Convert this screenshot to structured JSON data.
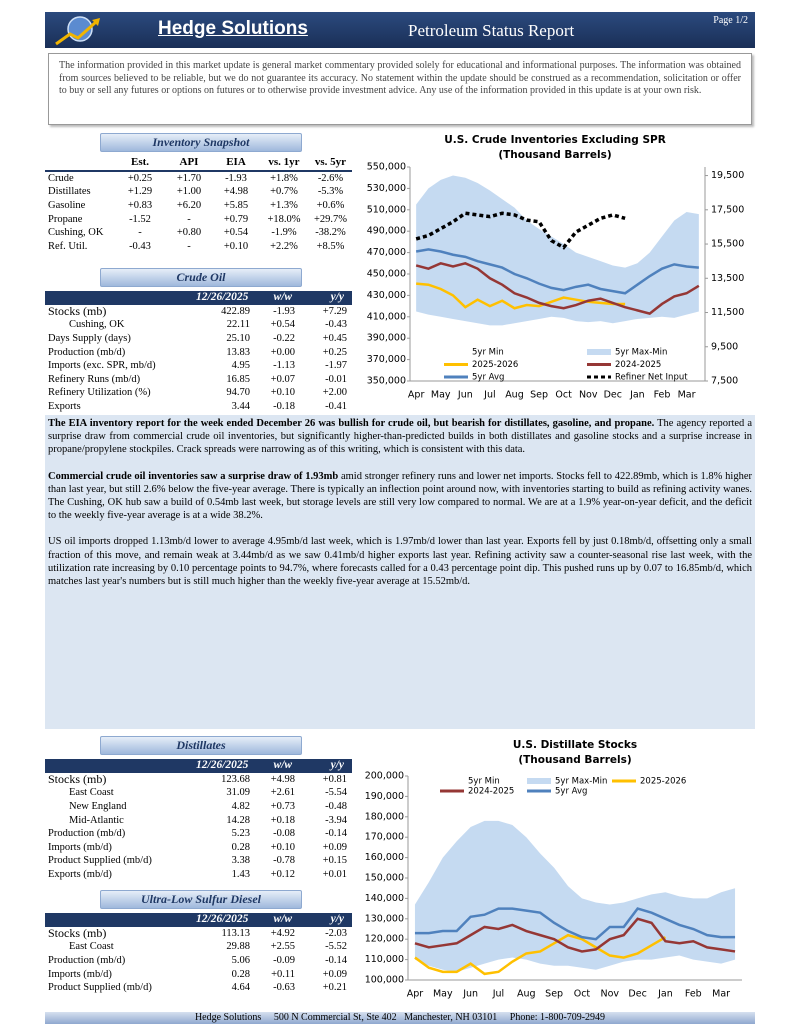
{
  "header": {
    "company": "Hedge Solutions",
    "title": "Petroleum Status Report",
    "page": "Page 1/2"
  },
  "disclaimer": "The information provided in this market update is general market commentary provided solely for educational and informational purposes. The information was obtained from sources believed to be reliable, but we do not guarantee its accuracy. No statement within the update should be construed as a recommendation, solicitation or offer to buy or sell any futures or options on futures or to otherwise provide investment advice. Any use of the information provided in this update is at your own risk.",
  "inventory_snapshot": {
    "title": "Inventory Snapshot",
    "columns": [
      "Est.",
      "API",
      "EIA",
      "vs. 1yr",
      "vs. 5yr"
    ],
    "rows": [
      {
        "label": "Crude",
        "values": [
          "+0.25",
          "+1.70",
          "-1.93",
          "+1.8%",
          "-2.6%"
        ]
      },
      {
        "label": "Distillates",
        "values": [
          "+1.29",
          "+1.00",
          "+4.98",
          "+0.7%",
          "-5.3%"
        ]
      },
      {
        "label": "Gasoline",
        "values": [
          "+0.83",
          "+6.20",
          "+5.85",
          "+1.3%",
          "+0.6%"
        ]
      },
      {
        "label": "Propane",
        "values": [
          "-1.52",
          "-",
          "+0.79",
          "+18.0%",
          "+29.7%"
        ]
      },
      {
        "label": "Cushing, OK",
        "values": [
          "-",
          "+0.80",
          "+0.54",
          "-1.9%",
          "-38.2%"
        ]
      },
      {
        "label": "Ref. Util.",
        "values": [
          "-0.43",
          "-",
          "+0.10",
          "+2.2%",
          "+8.5%"
        ]
      }
    ]
  },
  "crude_oil": {
    "title": "Crude Oil",
    "columns": [
      "12/26/2025",
      "w/w",
      "y/y"
    ],
    "rows": [
      {
        "label": "Stocks (mb)",
        "values": [
          "422.89",
          "-1.93",
          "+7.29"
        ]
      },
      {
        "label": "Cushing, OK",
        "indent": true,
        "values": [
          "22.11",
          "+0.54",
          "-0.43"
        ]
      },
      {
        "label": "Days Supply (days)",
        "values": [
          "25.10",
          "-0.22",
          "+0.45"
        ]
      },
      {
        "label": "Production (mb/d)",
        "values": [
          "13.83",
          "+0.00",
          "+0.25"
        ]
      },
      {
        "label": "Imports (exc. SPR, mb/d)",
        "values": [
          "4.95",
          "-1.13",
          "-1.97"
        ]
      },
      {
        "label": "Refinery Runs (mb/d)",
        "values": [
          "16.85",
          "+0.07",
          "-0.01"
        ]
      },
      {
        "label": "Refinery Utilization (%)",
        "values": [
          "94.70",
          "+0.10",
          "+2.00"
        ]
      },
      {
        "label": "Exports",
        "values": [
          "3.44",
          "-0.18",
          "-0.41"
        ]
      }
    ]
  },
  "commentary": [
    {
      "bold": "The EIA inventory report for the week ended December 26 was bullish for crude oil, but bearish for distillates, gasoline, and propane.",
      "text": " The agency reported a surprise draw from commercial crude oil inventories, but significantly higher-than-predicted builds in both distillates and gasoline stocks and a surprise increase in propane/propylene stockpiles. Crack spreads were narrowing as of this writing, which is consistent with this data."
    },
    {
      "bold": "Commercial crude oil inventories saw a surprise draw of 1.93mb",
      "text": " amid stronger refinery runs and lower net imports. Stocks fell to 422.89mb, which is 1.8% higher than last year, but still 2.6% below the five-year average. There is typically an inflection point around now, with inventories starting to build as refining activity wanes. The Cushing, OK hub saw a build of 0.54mb last week, but storage levels are still very low compared to normal. We are at a 1.9% year-on-year deficit, and the deficit to the weekly five-year average is at a wide 38.2%."
    },
    {
      "text": "US oil imports dropped 1.13mb/d lower to average 4.95mb/d last week, which is 1.97mb/d lower than last year. Exports fell by just 0.18mb/d, offsetting only a small fraction of this move, and remain weak at 3.44mb/d as we saw 0.41mb/d higher exports last year. Refining activity saw a counter-seasonal rise last week, with the utilization rate increasing by 0.10 percentage points to 94.7%, where forecasts called for a 0.43 percentage point dip. This pushed runs up by 0.07 to 16.85mb/d, which matches last year's numbers but is still much higher than the weekly five-year average at 15.52mb/d."
    }
  ],
  "distillates": {
    "title": "Distillates",
    "columns": [
      "12/26/2025",
      "w/w",
      "y/y"
    ],
    "rows": [
      {
        "label": "Stocks (mb)",
        "values": [
          "123.68",
          "+4.98",
          "+0.81"
        ]
      },
      {
        "label": "East Coast",
        "indent": true,
        "values": [
          "31.09",
          "+2.61",
          "-5.54"
        ]
      },
      {
        "label": "New England",
        "indent": true,
        "values": [
          "4.82",
          "+0.73",
          "-0.48"
        ]
      },
      {
        "label": "Mid-Atlantic",
        "indent": true,
        "values": [
          "14.28",
          "+0.18",
          "-3.94"
        ]
      },
      {
        "label": "Production (mb/d)",
        "values": [
          "5.23",
          "-0.08",
          "-0.14"
        ]
      },
      {
        "label": "Imports (mb/d)",
        "values": [
          "0.28",
          "+0.10",
          "+0.09"
        ]
      },
      {
        "label": "Product Supplied (mb/d)",
        "values": [
          "3.38",
          "-0.78",
          "+0.15"
        ]
      },
      {
        "label": "Exports (mb/d)",
        "values": [
          "1.43",
          "+0.12",
          "+0.01"
        ]
      }
    ]
  },
  "ulsd": {
    "title": "Ultra-Low Sulfur Diesel",
    "columns": [
      "12/26/2025",
      "w/w",
      "y/y"
    ],
    "rows": [
      {
        "label": "Stocks (mb)",
        "values": [
          "113.13",
          "+4.92",
          "-2.03"
        ]
      },
      {
        "label": "East Coast",
        "indent": true,
        "values": [
          "29.88",
          "+2.55",
          "-5.52"
        ]
      },
      {
        "label": "Production (mb/d)",
        "values": [
          "5.06",
          "-0.09",
          "-0.14"
        ]
      },
      {
        "label": "Imports (mb/d)",
        "values": [
          "0.28",
          "+0.11",
          "+0.09"
        ]
      },
      {
        "label": "Product Supplied (mb/d)",
        "values": [
          "4.64",
          "-0.63",
          "+0.21"
        ]
      }
    ]
  },
  "footer": "Hedge Solutions     500 N Commercial St, Ste 402   Manchester, NH 03101     Phone: 1-800-709-2949",
  "charts": [
    {
      "type": "line",
      "title": "U.S. Crude Inventories Excluding SPR",
      "subtitle": "(Thousand Barrels)",
      "categories": [
        "Apr",
        null,
        "May",
        null,
        "Jun",
        null,
        "Jul",
        null,
        "Aug",
        null,
        "Sep",
        null,
        "Oct",
        null,
        "Nov",
        null,
        "Dec",
        null,
        "Jan",
        null,
        "Feb",
        null,
        "Mar",
        null
      ],
      "ylim": [
        350000,
        550000
      ],
      "yticks": [
        {
          "value": 350000,
          "label": "350,000"
        },
        {
          "value": 370000,
          "label": "370,000"
        },
        {
          "value": 390000,
          "label": "390,000"
        },
        {
          "value": 410000,
          "label": "410,000"
        },
        {
          "value": 430000,
          "label": "430,000"
        },
        {
          "value": 450000,
          "label": "450,000"
        },
        {
          "value": 470000,
          "label": "470,000"
        },
        {
          "value": 490000,
          "label": "490,000"
        },
        {
          "value": 510000,
          "label": "510,000"
        },
        {
          "value": 530000,
          "label": "530,000"
        },
        {
          "value": 550000,
          "label": "550,000"
        }
      ],
      "y2lim": [
        7500,
        20000
      ],
      "y2ticks": [
        {
          "value": 7500,
          "label": "7,500"
        },
        {
          "value": 9500,
          "label": "9,500"
        },
        {
          "value": 11500,
          "label": "11,500"
        },
        {
          "value": 13500,
          "label": "13,500"
        },
        {
          "value": 15500,
          "label": "15,500"
        },
        {
          "value": 17500,
          "label": "17,500"
        },
        {
          "value": 19500,
          "label": "19,500"
        }
      ],
      "grid": false,
      "legend": "bottom",
      "series": [
        {
          "name": "5yr Min",
          "style": "area",
          "color": "#ffffff",
          "values": [
            415000,
            412000,
            410000,
            408000,
            406000,
            404000,
            402000,
            402000,
            404000,
            406000,
            408000,
            410000,
            409000,
            406000,
            405000,
            406000,
            404000,
            406000,
            408000,
            409000,
            410000,
            409000,
            412000,
            415000
          ]
        },
        {
          "name": "5yr Max-Min",
          "style": "area",
          "stacked": true,
          "color": "#c5daf1",
          "values": [
            100000,
            118000,
            128000,
            134000,
            134000,
            131000,
            126000,
            118000,
            108000,
            94000,
            84000,
            75000,
            69000,
            64000,
            61000,
            56000,
            54000,
            50000,
            52000,
            61000,
            75000,
            91000,
            96000,
            91000
          ]
        },
        {
          "name": "2025-2026",
          "style": "line",
          "color": "#ffc000",
          "values": [
            441000,
            440000,
            436000,
            430000,
            419000,
            426000,
            420000,
            425000,
            418000,
            421000,
            420000,
            424000,
            428000,
            426000,
            424000,
            423000,
            422000,
            422000,
            null,
            null,
            null,
            null,
            null,
            null
          ]
        },
        {
          "name": "2024-2025",
          "style": "line",
          "color": "#953735",
          "values": [
            458000,
            455000,
            460000,
            457000,
            460000,
            455000,
            446000,
            440000,
            432000,
            428000,
            423000,
            420000,
            418000,
            421000,
            425000,
            427000,
            423000,
            419000,
            416000,
            413000,
            422000,
            429000,
            432000,
            439000
          ]
        },
        {
          "name": "5yr Avg",
          "style": "line",
          "color": "#4f81bd",
          "values": [
            471000,
            473000,
            471000,
            468000,
            466000,
            462000,
            459000,
            456000,
            450000,
            446000,
            441000,
            437000,
            435000,
            438000,
            440000,
            436000,
            434000,
            432000,
            440000,
            448000,
            455000,
            459000,
            457000,
            456000
          ]
        },
        {
          "name": "Refiner Net Input",
          "style": "dotted",
          "axis": "y2",
          "color": "#000000",
          "values": [
            15800,
            16000,
            16400,
            16800,
            17300,
            17200,
            17100,
            17300,
            17200,
            16900,
            16800,
            15700,
            15300,
            16200,
            16600,
            17000,
            17200,
            17000,
            null,
            null,
            null,
            null,
            null,
            null
          ]
        }
      ]
    },
    {
      "type": "line",
      "title": "U.S. Distillate Stocks",
      "subtitle": "(Thousand Barrels)",
      "categories": [
        "Apr",
        null,
        "May",
        null,
        "Jun",
        null,
        "Jul",
        null,
        "Aug",
        null,
        "Sep",
        null,
        "Oct",
        null,
        "Nov",
        null,
        "Dec",
        null,
        "Jan",
        null,
        "Feb",
        null,
        "Mar",
        null
      ],
      "ylim": [
        100000,
        200000
      ],
      "yticks": [
        {
          "value": 100000,
          "label": "100,000"
        },
        {
          "value": 110000,
          "label": "110,000"
        },
        {
          "value": 120000,
          "label": "120,000"
        },
        {
          "value": 130000,
          "label": "130,000"
        },
        {
          "value": 140000,
          "label": "140,000"
        },
        {
          "value": 150000,
          "label": "150,000"
        },
        {
          "value": 160000,
          "label": "160,000"
        },
        {
          "value": 170000,
          "label": "170,000"
        },
        {
          "value": 180000,
          "label": "180,000"
        },
        {
          "value": 190000,
          "label": "190,000"
        },
        {
          "value": 200000,
          "label": "200,000"
        }
      ],
      "grid": false,
      "legend": "top",
      "series": [
        {
          "name": "5yr Min",
          "style": "area",
          "color": "#ffffff",
          "values": [
            110000,
            107000,
            105000,
            104000,
            106000,
            108000,
            110000,
            111000,
            110000,
            108000,
            107000,
            107000,
            106000,
            105000,
            107000,
            109000,
            110000,
            110000,
            111000,
            112000,
            110000,
            109000,
            108000,
            110000
          ]
        },
        {
          "name": "5yr Max-Min",
          "style": "area",
          "stacked": true,
          "color": "#c5daf1",
          "values": [
            27000,
            41000,
            55000,
            64000,
            69000,
            70000,
            68000,
            65000,
            60000,
            54000,
            48000,
            39000,
            34000,
            33000,
            30000,
            29000,
            30000,
            32000,
            32000,
            29000,
            30000,
            31000,
            35000,
            35000
          ]
        },
        {
          "name": "2025-2026",
          "style": "line",
          "color": "#ffc000",
          "values": [
            111000,
            106000,
            104000,
            104000,
            108000,
            103000,
            104000,
            109000,
            113000,
            114000,
            118000,
            122000,
            120000,
            116000,
            112000,
            111000,
            113000,
            117000,
            121000,
            null,
            null,
            null,
            null,
            null
          ]
        },
        {
          "name": "2024-2025",
          "style": "line",
          "color": "#953735",
          "values": [
            118000,
            116000,
            117000,
            118000,
            122000,
            126000,
            125000,
            127000,
            124000,
            122000,
            120000,
            116000,
            114000,
            115000,
            120000,
            122000,
            130000,
            128000,
            119000,
            118000,
            119000,
            116000,
            115000,
            114000
          ]
        },
        {
          "name": "5yr Avg",
          "style": "line",
          "color": "#4f81bd",
          "values": [
            123000,
            123000,
            124000,
            124000,
            131000,
            132000,
            135000,
            135000,
            134000,
            133000,
            128000,
            124000,
            121000,
            120000,
            126000,
            126000,
            135000,
            133000,
            130000,
            127000,
            125000,
            122000,
            121000,
            121000
          ]
        }
      ]
    }
  ]
}
